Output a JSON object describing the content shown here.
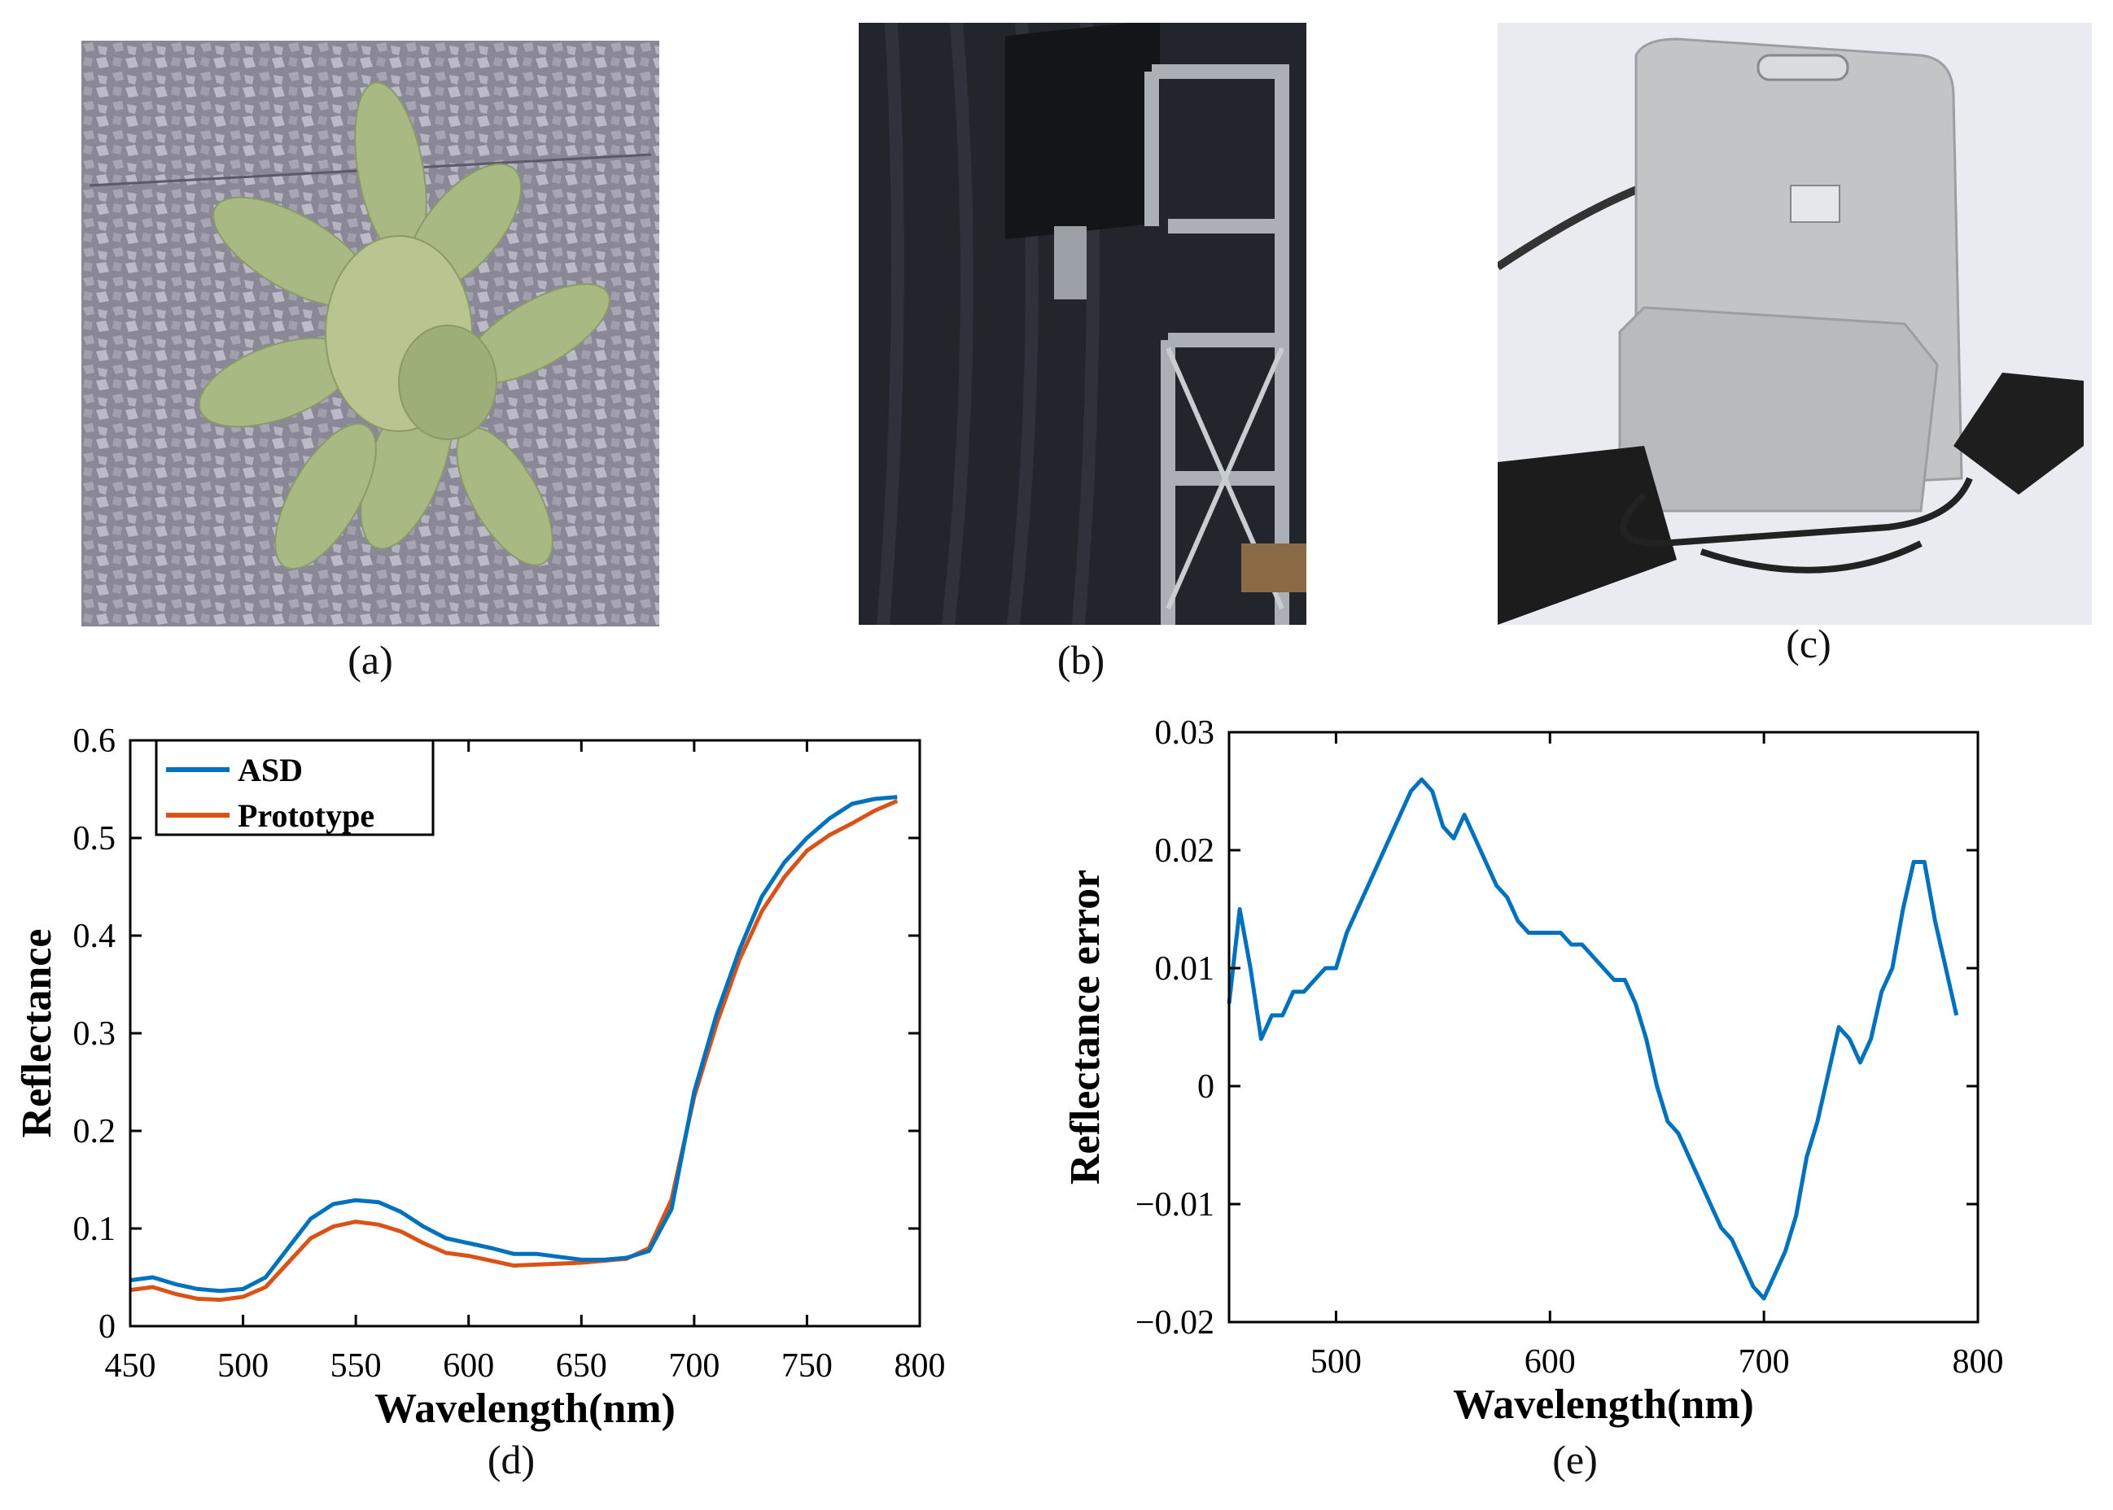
{
  "panels": {
    "a": "(a)",
    "b": "(b)",
    "c": "(c)",
    "d": "(d)",
    "e": "(e)"
  },
  "colors": {
    "asd": "#0072BD",
    "prototype": "#D95319"
  },
  "chart_data": [
    {
      "type": "line",
      "xlabel": "Wavelength(nm)",
      "ylabel": "Reflectance",
      "xlim": [
        450,
        800
      ],
      "ylim": [
        0,
        0.6
      ],
      "xticks": [
        450,
        500,
        550,
        600,
        650,
        700,
        750,
        800
      ],
      "yticks": [
        0,
        0.1,
        0.2,
        0.3,
        0.4,
        0.5,
        0.6
      ],
      "legend_position": "top-left",
      "series": [
        {
          "name": "ASD",
          "x": [
            450,
            460,
            470,
            480,
            490,
            500,
            510,
            520,
            530,
            540,
            550,
            560,
            570,
            580,
            590,
            600,
            610,
            620,
            630,
            640,
            650,
            660,
            670,
            680,
            690,
            700,
            710,
            720,
            730,
            740,
            750,
            760,
            770,
            780,
            790
          ],
          "y": [
            0.047,
            0.05,
            0.043,
            0.038,
            0.036,
            0.038,
            0.05,
            0.08,
            0.11,
            0.125,
            0.129,
            0.127,
            0.117,
            0.102,
            0.09,
            0.085,
            0.08,
            0.074,
            0.074,
            0.071,
            0.068,
            0.068,
            0.07,
            0.077,
            0.12,
            0.24,
            0.32,
            0.385,
            0.44,
            0.475,
            0.5,
            0.52,
            0.535,
            0.54,
            0.542
          ]
        },
        {
          "name": "Prototype",
          "x": [
            450,
            460,
            470,
            480,
            490,
            500,
            510,
            520,
            530,
            540,
            550,
            560,
            570,
            580,
            590,
            600,
            610,
            620,
            630,
            640,
            650,
            660,
            670,
            680,
            690,
            700,
            710,
            720,
            730,
            740,
            750,
            760,
            770,
            780,
            790
          ],
          "y": [
            0.037,
            0.04,
            0.033,
            0.028,
            0.027,
            0.03,
            0.04,
            0.065,
            0.09,
            0.102,
            0.107,
            0.104,
            0.097,
            0.085,
            0.075,
            0.072,
            0.067,
            0.062,
            0.063,
            0.064,
            0.065,
            0.067,
            0.069,
            0.08,
            0.13,
            0.235,
            0.31,
            0.375,
            0.425,
            0.46,
            0.487,
            0.503,
            0.515,
            0.528,
            0.538
          ]
        }
      ]
    },
    {
      "type": "line",
      "xlabel": "Wavelength(nm)",
      "ylabel": "Reflectance error",
      "xlim": [
        450,
        800
      ],
      "ylim": [
        -0.02,
        0.03
      ],
      "xticks": [
        500,
        600,
        700,
        800
      ],
      "yticks": [
        -0.02,
        -0.01,
        0,
        0.01,
        0.02,
        0.03
      ],
      "series": [
        {
          "x": [
            450,
            455,
            460,
            465,
            470,
            475,
            480,
            485,
            490,
            495,
            500,
            505,
            510,
            515,
            520,
            525,
            530,
            535,
            540,
            545,
            550,
            555,
            560,
            565,
            570,
            575,
            580,
            585,
            590,
            595,
            600,
            605,
            610,
            615,
            620,
            625,
            630,
            635,
            640,
            645,
            650,
            655,
            660,
            665,
            670,
            675,
            680,
            685,
            690,
            695,
            700,
            705,
            710,
            715,
            720,
            725,
            730,
            735,
            740,
            745,
            750,
            755,
            760,
            765,
            770,
            775,
            780,
            785,
            790
          ],
          "y": [
            0.007,
            0.015,
            0.01,
            0.004,
            0.006,
            0.006,
            0.008,
            0.008,
            0.009,
            0.01,
            0.01,
            0.013,
            0.015,
            0.017,
            0.019,
            0.021,
            0.023,
            0.025,
            0.026,
            0.025,
            0.022,
            0.021,
            0.023,
            0.021,
            0.019,
            0.017,
            0.016,
            0.014,
            0.013,
            0.013,
            0.013,
            0.013,
            0.012,
            0.012,
            0.011,
            0.01,
            0.009,
            0.009,
            0.007,
            0.004,
            0.0,
            -0.003,
            -0.004,
            -0.006,
            -0.008,
            -0.01,
            -0.012,
            -0.013,
            -0.015,
            -0.017,
            -0.018,
            -0.016,
            -0.014,
            -0.011,
            -0.006,
            -0.003,
            0.001,
            0.005,
            0.004,
            0.002,
            0.004,
            0.008,
            0.01,
            0.015,
            0.019,
            0.019,
            0.014,
            0.01,
            0.006
          ]
        }
      ]
    }
  ]
}
